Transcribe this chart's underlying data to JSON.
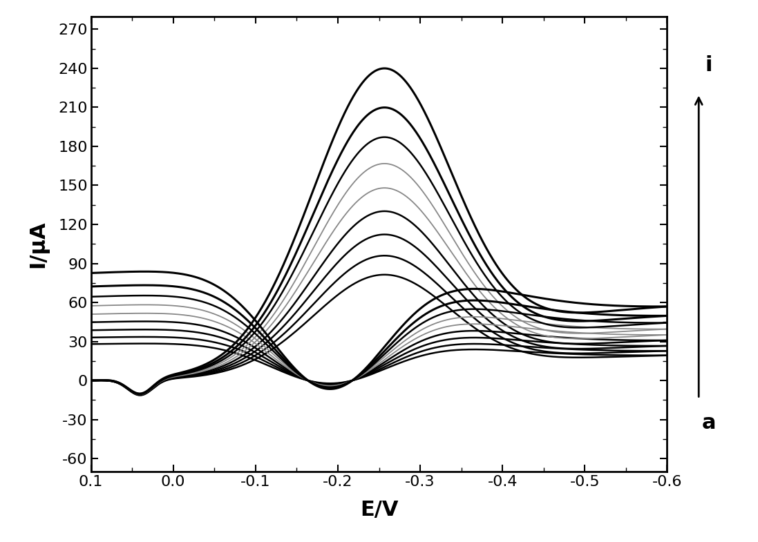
{
  "xlabel": "E/V",
  "ylabel": "I/μA",
  "xlim": [
    0.1,
    -0.6
  ],
  "ylim": [
    -70,
    280
  ],
  "yticks": [
    -60,
    -30,
    0,
    30,
    60,
    90,
    120,
    150,
    180,
    210,
    240,
    270
  ],
  "xticks": [
    0.1,
    0.0,
    -0.1,
    -0.2,
    -0.3,
    -0.4,
    -0.5,
    -0.6
  ],
  "label_i": "i",
  "label_a": "a",
  "background_color": "#ffffff",
  "curve_params": [
    {
      "scale": 1.0,
      "color": "#000000",
      "lw": 1.8,
      "label": "a"
    },
    {
      "scale": 1.18,
      "color": "#000000",
      "lw": 1.8,
      "label": "b"
    },
    {
      "scale": 1.38,
      "color": "#000000",
      "lw": 1.8,
      "label": "c"
    },
    {
      "scale": 1.6,
      "color": "#000000",
      "lw": 1.8,
      "label": "d"
    },
    {
      "scale": 1.82,
      "color": "#888888",
      "lw": 1.3,
      "label": "e"
    },
    {
      "scale": 2.05,
      "color": "#888888",
      "lw": 1.3,
      "label": "f"
    },
    {
      "scale": 2.3,
      "color": "#000000",
      "lw": 1.8,
      "label": "g"
    },
    {
      "scale": 2.58,
      "color": "#000000",
      "lw": 2.2,
      "label": "h"
    },
    {
      "scale": 2.95,
      "color": "#000000",
      "lw": 2.2,
      "label": "i"
    }
  ]
}
